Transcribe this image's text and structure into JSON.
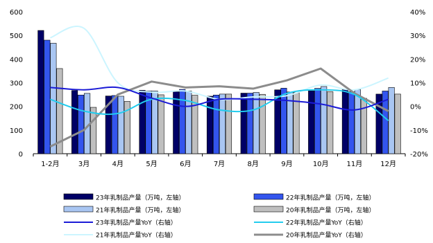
{
  "chart_data": {
    "type": "bar",
    "categories": [
      "1-2月",
      "3月",
      "4月",
      "5月",
      "6月",
      "7月",
      "8月",
      "9月",
      "10月",
      "11月",
      "12月"
    ],
    "left_axis": {
      "ylim": [
        0,
        600
      ],
      "ticks": [
        "0",
        "100",
        "200",
        "300",
        "400",
        "500",
        "600"
      ]
    },
    "right_axis": {
      "ylim": [
        -20,
        40
      ],
      "ticks": [
        "-20%",
        "-10%",
        "0%",
        "10%",
        "20%",
        "30%",
        "40%"
      ]
    },
    "grid": false,
    "legend_position": "bottom",
    "bar_series": [
      {
        "name": "23年乳制品产量（万吨，左轴）",
        "color": "#000066",
        "values": [
          521,
          267,
          244,
          268,
          262,
          243,
          256,
          270,
          266,
          271,
          252
        ]
      },
      {
        "name": "22年乳制品产量（万吨，左轴）",
        "color": "#3355ee",
        "values": [
          480,
          248,
          246,
          265,
          272,
          248,
          256,
          277,
          276,
          262,
          265
        ]
      },
      {
        "name": "21年乳制品产量（万吨，左轴）",
        "color": "#a9c6f2",
        "values": [
          467,
          255,
          243,
          265,
          265,
          252,
          259,
          261,
          284,
          271,
          280
        ]
      },
      {
        "name": "20年乳制品产量（万吨，左轴）",
        "color": "#bfbfbf",
        "values": [
          360,
          196,
          221,
          249,
          247,
          252,
          251,
          258,
          262,
          234,
          252
        ]
      }
    ],
    "line_series": [
      {
        "name": "23年乳制品产量YoY（右轴）",
        "color": "#1a1ad6",
        "values": [
          8.0,
          7.0,
          8.0,
          3.5,
          0.0,
          3.0,
          3.0,
          2.5,
          1.0,
          -1.5,
          3.0
        ]
      },
      {
        "name": "22年乳制品产量YoY（右轴）",
        "color": "#22ccee",
        "values": [
          3.0,
          -2.0,
          -3.0,
          3.0,
          2.5,
          -1.5,
          -1.5,
          5.5,
          7.0,
          5.0,
          -6.0
        ]
      },
      {
        "name": "21年乳制品产量YoY（右轴）",
        "color": "#ccf5ff",
        "values": [
          29.0,
          33.0,
          10.0,
          6.0,
          6.5,
          3.0,
          4.0,
          4.5,
          9.0,
          7.0,
          12.0
        ]
      },
      {
        "name": "20年乳制品产量YoY（右轴）",
        "color": "#8c8c8c",
        "values": [
          -17.0,
          -10.0,
          5.0,
          10.5,
          8.0,
          8.5,
          7.5,
          11.0,
          16.0,
          5.5,
          -2.0
        ]
      }
    ]
  }
}
